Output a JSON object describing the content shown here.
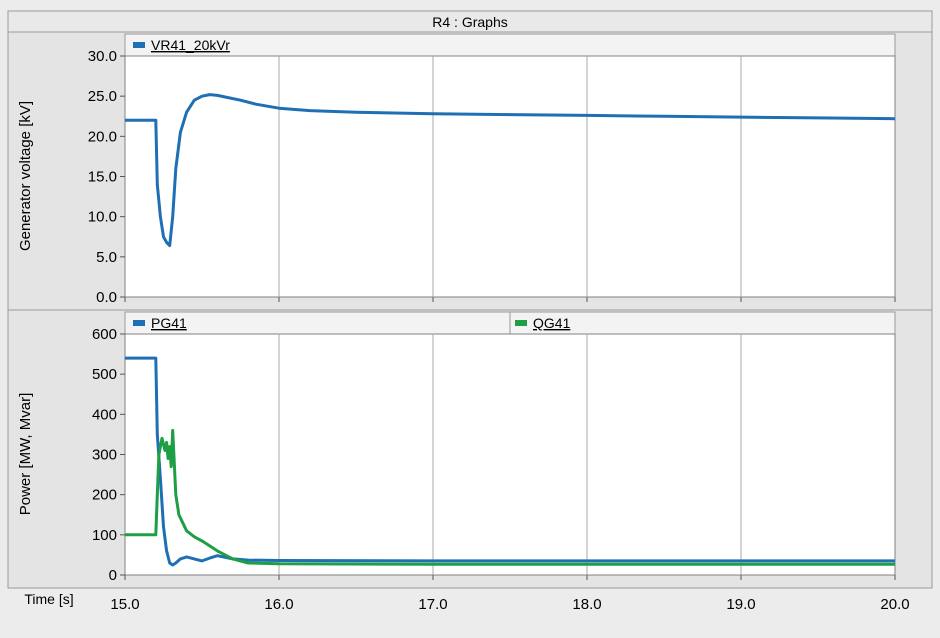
{
  "window_title": "R4 : Graphs",
  "x_axis_label": "Time [s]",
  "colors": {
    "series_blue": "#1f6fb5",
    "series_green": "#1e9e45",
    "grid": "#a8a8a8",
    "plot_background": "#ffffff",
    "panel_background": "#e4e4e4"
  },
  "chart_data": [
    {
      "type": "line",
      "ylabel": "Generator voltage [kV]",
      "xlabel": "",
      "xlim": [
        15.0,
        20.0
      ],
      "ylim": [
        0.0,
        30.0
      ],
      "xticks": [
        "15.0",
        "16.0",
        "17.0",
        "18.0",
        "19.0",
        "20.0"
      ],
      "yticks": [
        "0.0",
        "5.0",
        "10.0",
        "15.0",
        "20.0",
        "25.0",
        "30.0"
      ],
      "grid": true,
      "legend_position": "top-left",
      "series": [
        {
          "name": "VR41_20kVr",
          "color": "#1f6fb5",
          "x": [
            15.0,
            15.2,
            15.21,
            15.23,
            15.25,
            15.27,
            15.29,
            15.31,
            15.33,
            15.36,
            15.4,
            15.45,
            15.5,
            15.55,
            15.6,
            15.65,
            15.75,
            15.85,
            16.0,
            16.2,
            16.5,
            17.0,
            17.5,
            18.0,
            18.5,
            19.0,
            19.5,
            20.0
          ],
          "values": [
            22.0,
            22.0,
            14.0,
            10.0,
            7.5,
            6.8,
            6.4,
            10.0,
            16.0,
            20.5,
            23.0,
            24.5,
            25.0,
            25.2,
            25.1,
            24.9,
            24.5,
            24.0,
            23.5,
            23.2,
            23.0,
            22.8,
            22.7,
            22.6,
            22.5,
            22.4,
            22.3,
            22.2
          ]
        }
      ]
    },
    {
      "type": "line",
      "ylabel": "Power [MW, Mvar]",
      "xlabel": "Time [s]",
      "xlim": [
        15.0,
        20.0
      ],
      "ylim": [
        0,
        600
      ],
      "xticks": [
        "15.0",
        "16.0",
        "17.0",
        "18.0",
        "19.0",
        "20.0"
      ],
      "yticks": [
        "0",
        "100",
        "200",
        "300",
        "400",
        "500",
        "600"
      ],
      "grid": true,
      "legend_position": "top",
      "series": [
        {
          "name": "PG41",
          "color": "#1f6fb5",
          "x": [
            15.0,
            15.2,
            15.21,
            15.23,
            15.25,
            15.27,
            15.29,
            15.31,
            15.33,
            15.36,
            15.4,
            15.45,
            15.5,
            15.55,
            15.6,
            15.7,
            15.8,
            16.0,
            17.0,
            18.0,
            19.0,
            20.0
          ],
          "values": [
            540,
            540,
            350,
            240,
            120,
            60,
            30,
            25,
            30,
            40,
            45,
            40,
            35,
            42,
            48,
            40,
            37,
            36,
            35,
            35,
            35,
            35
          ]
        },
        {
          "name": "QG41",
          "color": "#1e9e45",
          "x": [
            15.0,
            15.2,
            15.21,
            15.22,
            15.24,
            15.26,
            15.27,
            15.28,
            15.29,
            15.3,
            15.31,
            15.33,
            15.35,
            15.4,
            15.45,
            15.5,
            15.6,
            15.7,
            15.8,
            16.0,
            17.0,
            18.0,
            19.0,
            20.0
          ],
          "values": [
            100,
            100,
            200,
            300,
            340,
            310,
            330,
            290,
            320,
            270,
            360,
            200,
            150,
            110,
            95,
            85,
            60,
            40,
            30,
            28,
            27,
            27,
            27,
            27
          ]
        }
      ]
    }
  ]
}
